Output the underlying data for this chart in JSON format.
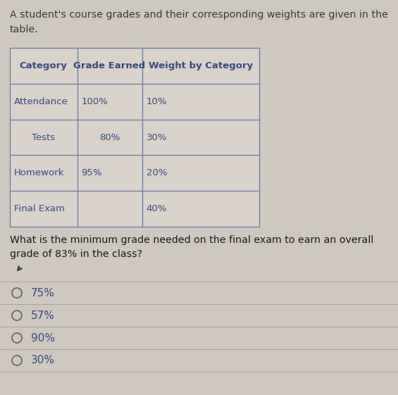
{
  "intro_text_line1": "A student's course grades and their corresponding weights are given in the",
  "intro_text_line2": "table.",
  "table_headers": [
    "Category",
    "Grade Earned",
    "Weight by Category"
  ],
  "table_rows": [
    [
      "Attendance",
      "100%",
      "10%"
    ],
    [
      "Tests",
      "80%",
      "30%"
    ],
    [
      "Homework",
      "95%",
      "20%"
    ],
    [
      "Final Exam",
      "",
      "40%"
    ]
  ],
  "question_line1": "What is the minimum grade needed on the final exam to earn an overall",
  "question_line2": "grade of 83% in the class?",
  "choices": [
    "75%",
    "57%",
    "90%",
    "30%"
  ],
  "bg_color": "#cec8c0",
  "table_border_color": "#7080a0",
  "header_text_color": "#3a4a80",
  "body_text_color": "#3a4a80",
  "question_text_color": "#1a1a1a",
  "choice_text_color": "#3a4a80",
  "intro_text_color": "#3a3a3a",
  "table_bg_color": "#d8d2ca",
  "radio_color": "#606060",
  "separator_color": "#b0a898",
  "fig_width": 5.65,
  "fig_height": 5.61,
  "dpi": 100
}
